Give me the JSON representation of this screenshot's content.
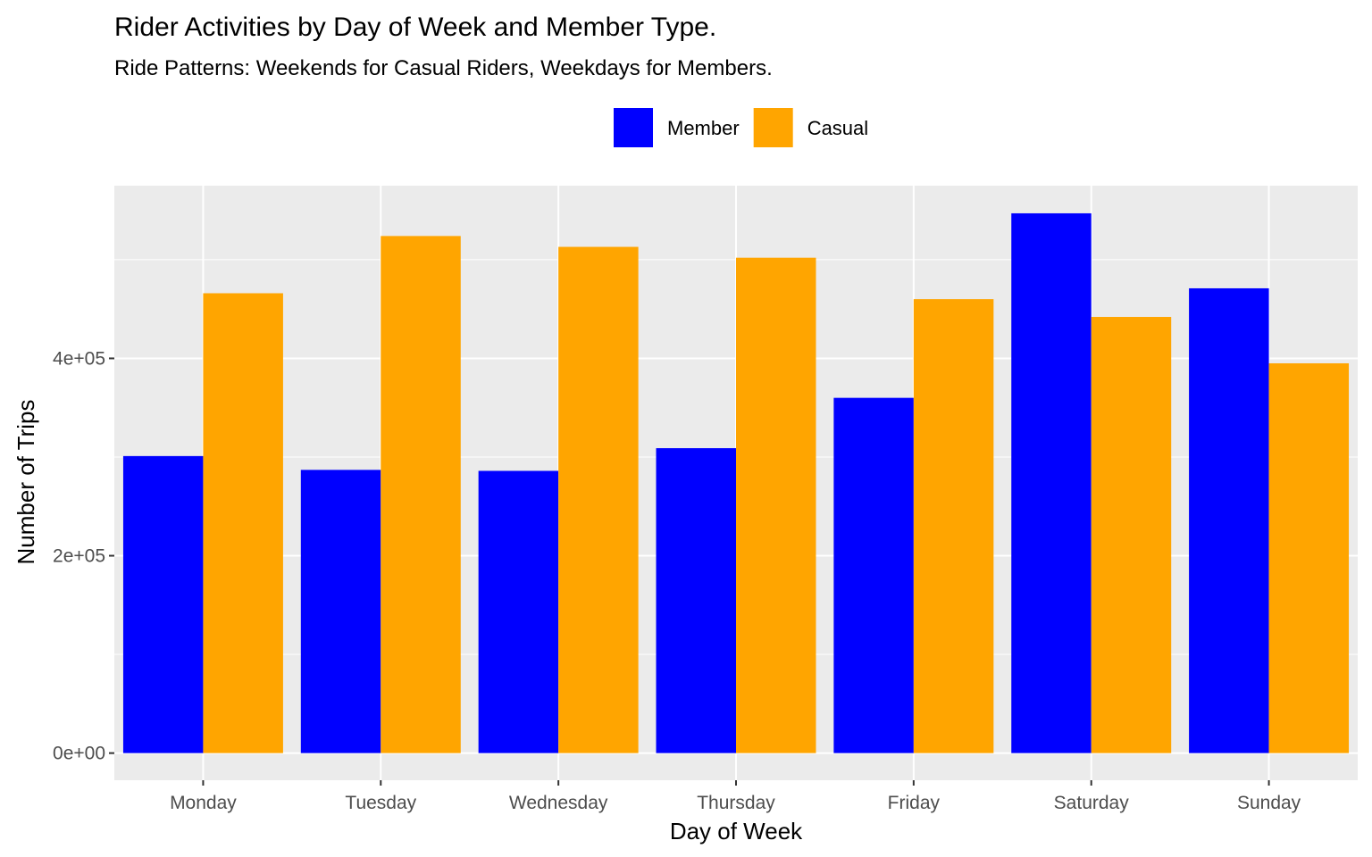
{
  "chart_data": {
    "type": "bar",
    "title": "Rider Activities by Day of Week and Member Type.",
    "subtitle": "Ride Patterns: Weekends for Casual Riders, Weekdays for Members.",
    "xlabel": "Day of Week",
    "ylabel": "Number of Trips",
    "categories": [
      "Monday",
      "Tuesday",
      "Wednesday",
      "Thursday",
      "Friday",
      "Saturday",
      "Sunday"
    ],
    "series": [
      {
        "name": "Member",
        "color": "#0000FF",
        "values": [
          301000,
          287000,
          286000,
          309000,
          360000,
          547000,
          471000
        ]
      },
      {
        "name": "Casual",
        "color": "#FFA500",
        "values": [
          466000,
          524000,
          513000,
          502000,
          460000,
          442000,
          395000
        ]
      }
    ],
    "ylim": [
      -27500,
      575000
    ],
    "yticks": [
      0,
      200000,
      400000
    ],
    "ytick_labels": [
      "0e+00",
      "2e+05",
      "4e+05"
    ],
    "legend_position": "top",
    "grid": true,
    "panel_background": "#EBEBEB",
    "grid_color": "#FFFFFF"
  }
}
